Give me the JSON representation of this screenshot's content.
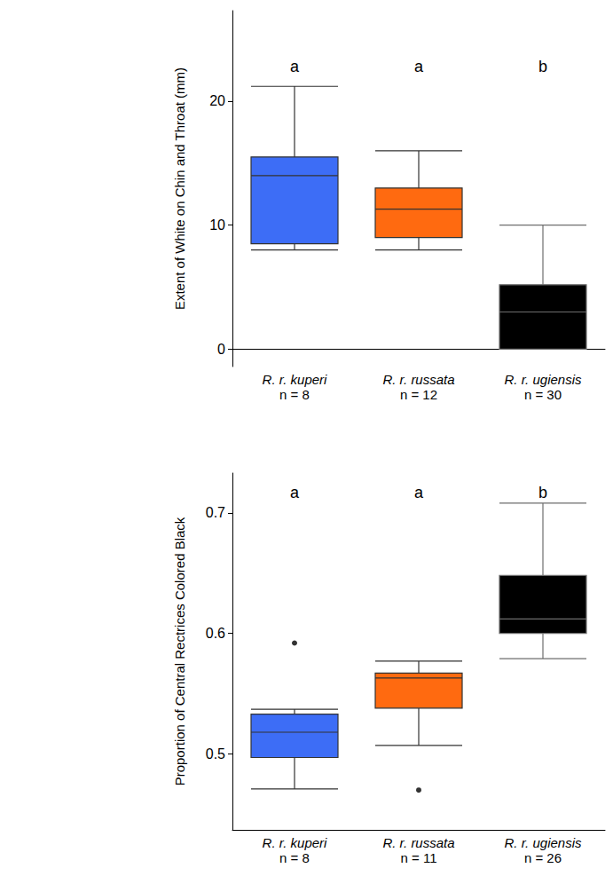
{
  "chart_data": [
    {
      "type": "boxplot",
      "y_label": "Extent of White on Chin and Throat (mm)",
      "categories": [
        "R. r. kuperi",
        "R. r. russata",
        "R. r. ugiensis"
      ],
      "category_notes": [
        "n = 8",
        "n = 12",
        "n = 30"
      ],
      "values": [
        [
          8.0,
          8.5,
          14.0,
          15.5,
          21.2
        ],
        [
          8.0,
          9.0,
          11.3,
          13.0,
          16.0
        ],
        [
          0.0,
          0.0,
          3.0,
          5.2,
          10.0
        ]
      ],
      "outliers": [
        [],
        [],
        []
      ],
      "colors": [
        "#3d6df6",
        "#ff6a10",
        "#000000"
      ],
      "group_labels": [
        "a",
        "a",
        "b"
      ],
      "ylim": [
        -1.4,
        27.3
      ],
      "yticks": [
        0,
        10,
        20
      ],
      "grid": false
    },
    {
      "type": "boxplot",
      "y_label": "Proportion of Central Rectrices Colored Black",
      "categories": [
        "R. r. kuperi",
        "R. r. russata",
        "R. r. ugiensis"
      ],
      "category_notes": [
        "n = 8",
        "n = 11",
        "n = 26"
      ],
      "values": [
        [
          0.471,
          0.497,
          0.518,
          0.533,
          0.537
        ],
        [
          0.507,
          0.538,
          0.563,
          0.567,
          0.577
        ],
        [
          0.579,
          0.6,
          0.612,
          0.648,
          0.708
        ]
      ],
      "outliers": [
        [
          0.592
        ],
        [
          0.47
        ],
        []
      ],
      "colors": [
        "#3d6df6",
        "#ff6a10",
        "#000000"
      ],
      "group_labels": [
        "a",
        "a",
        "b"
      ],
      "ylim": [
        0.437,
        0.733
      ],
      "yticks": [
        0.5,
        0.6,
        0.7
      ],
      "grid": false
    }
  ]
}
